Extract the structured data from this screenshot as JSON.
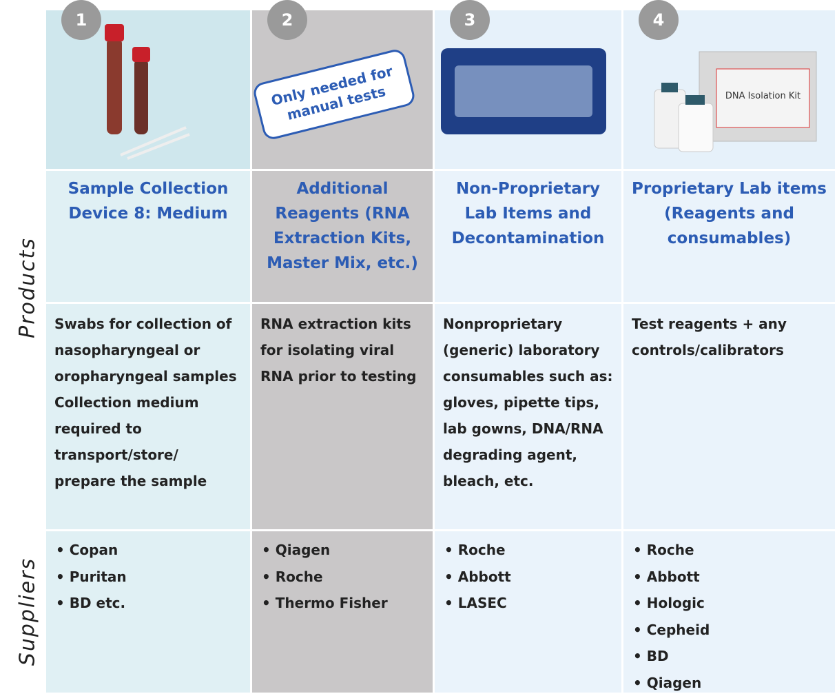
{
  "side_labels": {
    "products": "Products",
    "suppliers": "Suppliers"
  },
  "note": "Only needed for manual tests",
  "columns": [
    {
      "number": "1",
      "title": "Sample Collection Device 8: Medium",
      "description": [
        "Swabs for collection of nasopharyngeal or oropharyngeal samples",
        "Collection medium required to transport/store/ prepare the sample"
      ],
      "suppliers": [
        "Copan",
        "Puritan",
        "BD etc."
      ]
    },
    {
      "number": "2",
      "title": "Additional Reagents (RNA Extraction Kits, Master Mix, etc.)",
      "description": [
        "RNA extraction kits  for isolating viral RNA prior to testing"
      ],
      "suppliers": [
        "Qiagen",
        "Roche",
        "Thermo Fisher"
      ]
    },
    {
      "number": "3",
      "title": "Non-Proprietary Lab Items and Decontamination",
      "description": [
        "Nonproprietary (generic) laboratory consumables such as: gloves, pipette tips, lab gowns, DNA/RNA degrading agent, bleach, etc."
      ],
      "suppliers": [
        "Roche",
        "Abbott",
        "LASEC"
      ]
    },
    {
      "number": "4",
      "title": "Proprietary Lab items (Reagents and consumables)",
      "description": [
        "Test reagents + any controls/calibrators"
      ],
      "suppliers": [
        "Roche",
        "Abbott",
        "Hologic",
        "Cepheid",
        "BD",
        "Qiagen"
      ],
      "image_label": "DNA Isolation Kit"
    }
  ]
}
